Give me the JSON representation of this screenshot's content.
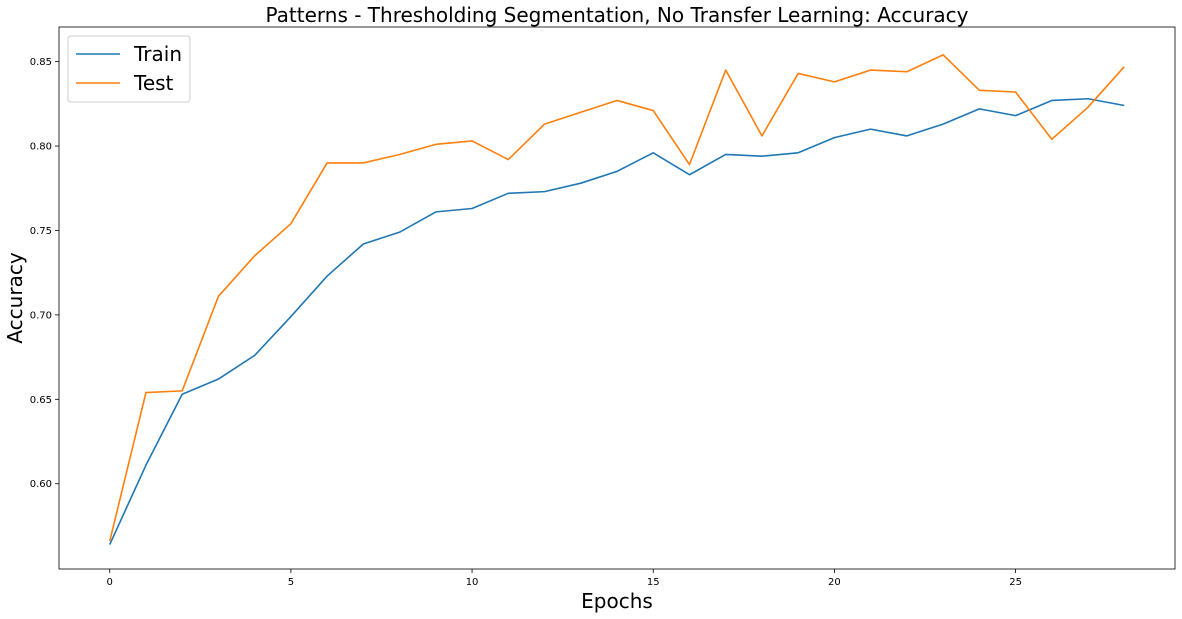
{
  "chart_data": {
    "type": "line",
    "title": "Patterns - Thresholding Segmentation, No Transfer Learning: Accuracy",
    "xlabel": "Epochs",
    "ylabel": "Accuracy",
    "xlim": [
      -1.4,
      29.4
    ],
    "ylim": [
      0.5495,
      0.8705
    ],
    "xticks": [
      0,
      5,
      10,
      15,
      20,
      25
    ],
    "yticks": [
      0.6,
      0.65,
      0.7,
      0.75,
      0.8,
      0.85
    ],
    "ytick_labels": [
      "0.60",
      "0.65",
      "0.70",
      "0.75",
      "0.80",
      "0.85"
    ],
    "grid": false,
    "legend_position": "top-left",
    "x": [
      0,
      1,
      2,
      3,
      4,
      5,
      6,
      7,
      8,
      9,
      10,
      11,
      12,
      13,
      14,
      15,
      16,
      17,
      18,
      19,
      20,
      21,
      22,
      23,
      24,
      25,
      26,
      27,
      28
    ],
    "series": [
      {
        "name": "Train",
        "color": "#1f77b4",
        "values": [
          0.564,
          0.611,
          0.653,
          0.662,
          0.676,
          0.699,
          0.723,
          0.742,
          0.749,
          0.761,
          0.763,
          0.772,
          0.773,
          0.778,
          0.785,
          0.796,
          0.783,
          0.795,
          0.794,
          0.796,
          0.805,
          0.81,
          0.806,
          0.813,
          0.822,
          0.818,
          0.827,
          0.828,
          0.824
        ]
      },
      {
        "name": "Test",
        "color": "#ff7f0e",
        "values": [
          0.566,
          0.654,
          0.655,
          0.711,
          0.735,
          0.754,
          0.79,
          0.79,
          0.795,
          0.801,
          0.803,
          0.792,
          0.813,
          0.82,
          0.827,
          0.821,
          0.789,
          0.845,
          0.806,
          0.843,
          0.838,
          0.845,
          0.844,
          0.854,
          0.833,
          0.832,
          0.804,
          0.823,
          0.847
        ]
      }
    ]
  }
}
